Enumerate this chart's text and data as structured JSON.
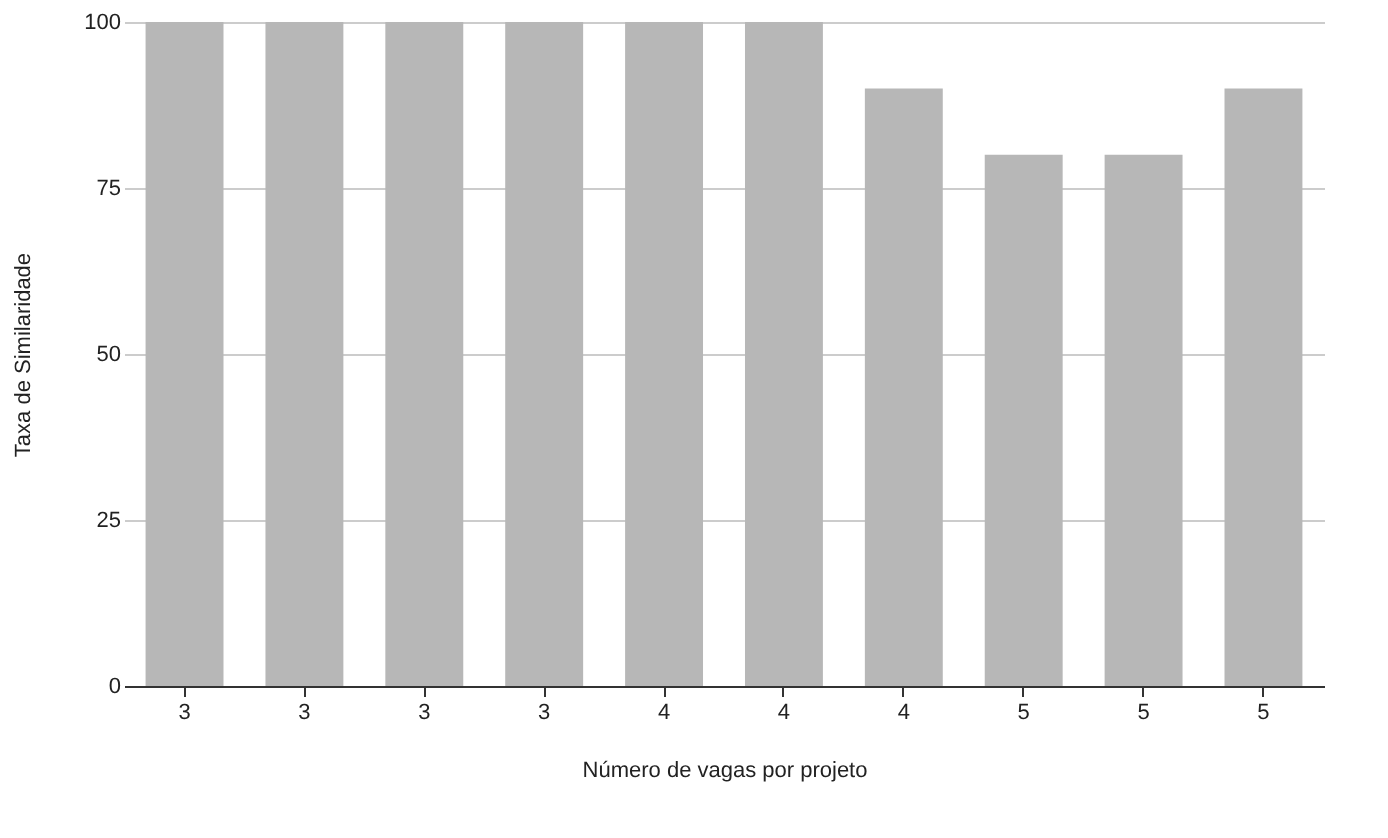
{
  "chart_data": {
    "type": "bar",
    "xlabel": "Número de vagas por projeto",
    "ylabel": "Taxa de Similaridade",
    "categories": [
      "3",
      "3",
      "3",
      "3",
      "4",
      "4",
      "4",
      "5",
      "5",
      "5"
    ],
    "values": [
      100,
      100,
      100,
      100,
      100,
      100,
      90,
      80,
      80,
      90
    ],
    "color": "#b7b7b7",
    "ylim": [
      0,
      100
    ],
    "yticks": [
      0,
      25,
      50,
      75,
      100
    ],
    "grid": "y"
  }
}
